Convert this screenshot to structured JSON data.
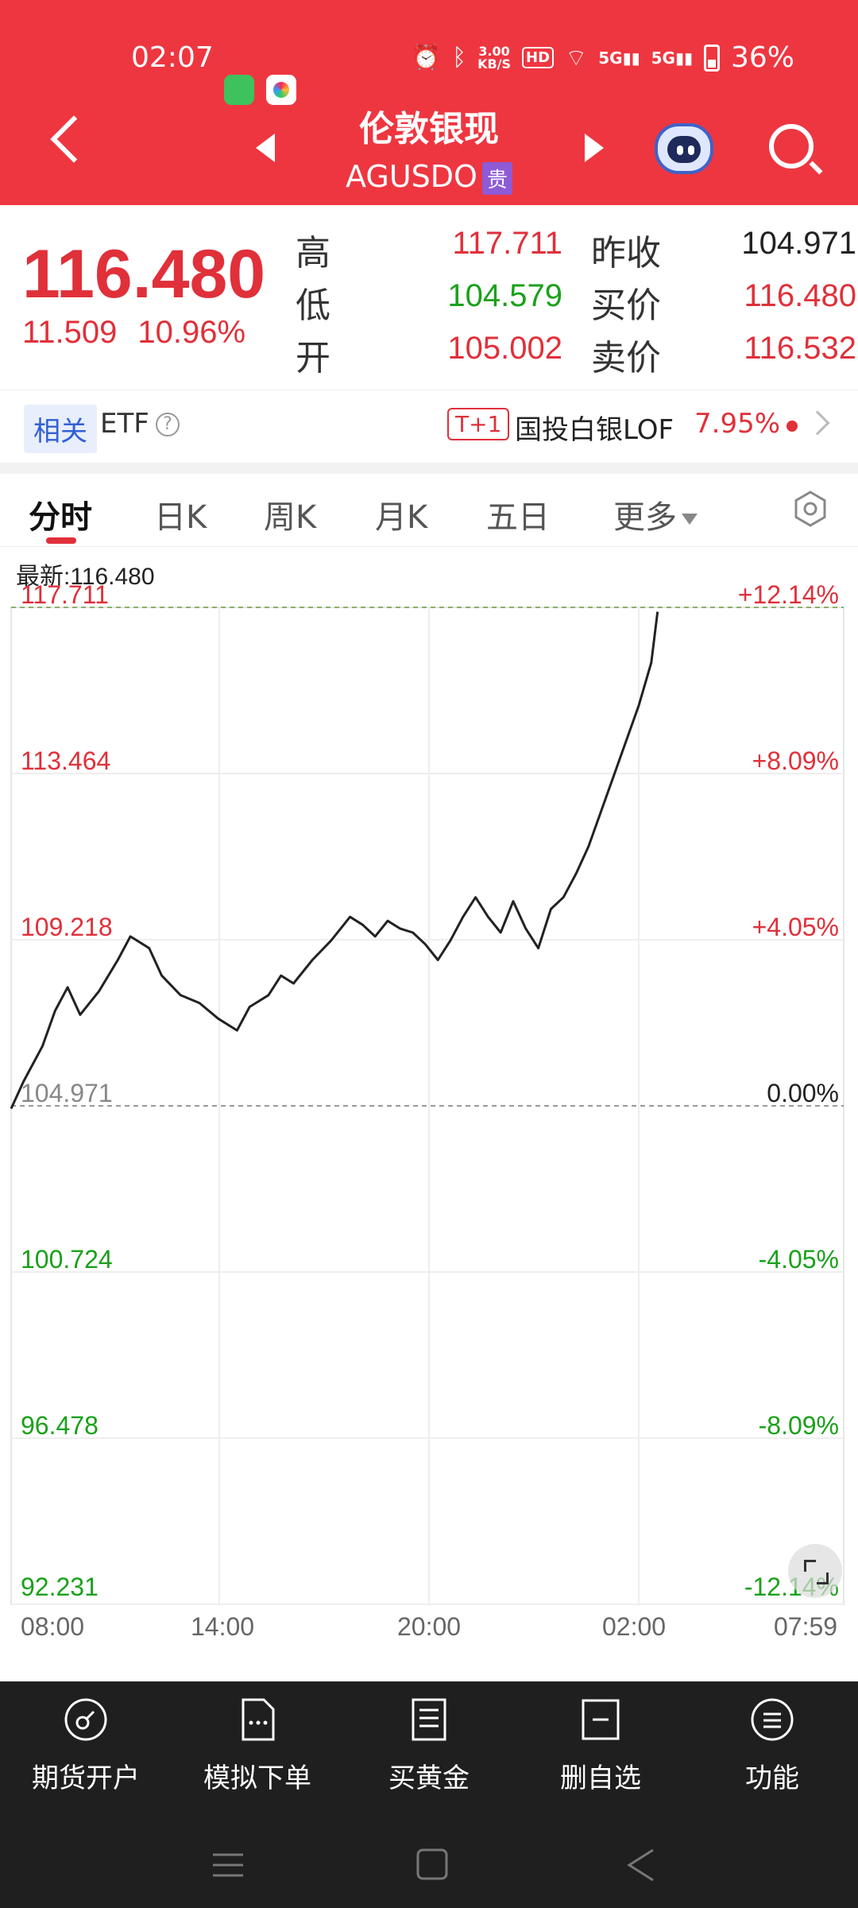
{
  "status_bar": {
    "time": "02:07",
    "net_speed_value": "3.00",
    "net_speed_unit": "KB/S",
    "hd": "HD",
    "sig1": "5G",
    "sig2": "5G",
    "battery": "36%"
  },
  "nav": {
    "title": "伦敦银现",
    "subtitle": "AGUSDO",
    "tag": "贵"
  },
  "quote": {
    "last_price": "116.480",
    "change": "11.509",
    "change_pct": "10.96%",
    "high_label": "高",
    "high": "117.711",
    "low_label": "低",
    "low": "104.579",
    "open_label": "开",
    "open": "105.002",
    "prev_close_label": "昨收",
    "prev_close": "104.971",
    "bid_label": "买价",
    "bid": "116.480",
    "ask_label": "卖价",
    "ask": "116.532"
  },
  "related": {
    "tag": "相关",
    "etf": "ETF",
    "help": "?",
    "t1": "T+1",
    "fund_name": "国投白银LOF",
    "fund_pct": "7.95%"
  },
  "tabs": [
    {
      "label": "分时",
      "active": true
    },
    {
      "label": "日K"
    },
    {
      "label": "周K"
    },
    {
      "label": "月K"
    },
    {
      "label": "五日"
    },
    {
      "label": "更多"
    }
  ],
  "latest_label": "最新:116.480",
  "chart_data": {
    "type": "line",
    "y_left_ticks": [
      "117.711",
      "113.464",
      "109.218",
      "104.971",
      "100.724",
      "96.478",
      "92.231"
    ],
    "y_right_ticks": [
      "+12.14%",
      "+8.09%",
      "+4.05%",
      "0.00%",
      "-4.05%",
      "-8.09%",
      "-12.14%"
    ],
    "x_ticks": [
      "08:00",
      "14:00",
      "20:00",
      "02:00",
      "07:59"
    ],
    "ylim": [
      92.231,
      117.711
    ],
    "prev_close": 104.971,
    "series": [
      {
        "x": [
          0,
          0.02,
          0.05,
          0.07,
          0.09,
          0.11,
          0.14,
          0.17,
          0.19,
          0.22,
          0.24,
          0.27,
          0.3,
          0.33,
          0.36,
          0.38,
          0.41,
          0.43,
          0.45,
          0.48,
          0.51,
          0.54,
          0.56,
          0.58,
          0.6,
          0.62,
          0.64,
          0.66,
          0.68,
          0.7,
          0.72,
          0.74,
          0.76,
          0.78,
          0.8,
          0.82,
          0.84,
          0.86,
          0.88,
          0.9,
          0.92,
          0.94,
          0.96,
          0.98,
          1.0,
          1.02,
          1.03
        ],
        "values": [
          104.9,
          105.6,
          106.5,
          107.4,
          108.0,
          107.3,
          107.9,
          108.7,
          109.3,
          109.0,
          108.3,
          107.8,
          107.6,
          107.2,
          106.9,
          107.5,
          107.8,
          108.3,
          108.1,
          108.7,
          109.2,
          109.8,
          109.6,
          109.3,
          109.7,
          109.5,
          109.4,
          109.1,
          108.7,
          109.2,
          109.8,
          110.3,
          109.8,
          109.4,
          110.2,
          109.5,
          109.0,
          110.0,
          110.3,
          110.9,
          111.6,
          112.5,
          113.4,
          114.3,
          115.2,
          116.3,
          117.6
        ]
      }
    ]
  },
  "bottom_bar": [
    {
      "label": "期货开户"
    },
    {
      "label": "模拟下单"
    },
    {
      "label": "买黄金"
    },
    {
      "label": "删自选"
    },
    {
      "label": "功能"
    }
  ]
}
